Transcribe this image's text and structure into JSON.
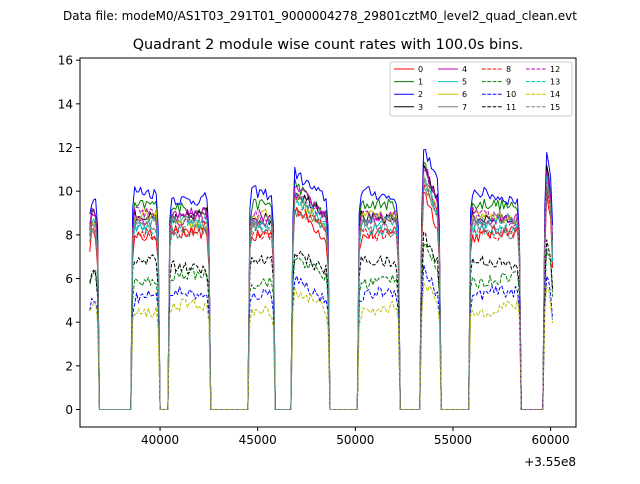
{
  "chart_data": {
    "type": "line",
    "suptitle": "Data file: modeM0/AS1T03_291T01_9000004278_29801cztM0_level2_quad_clean.evt",
    "title": "Quadrant 2 module wise count rates with 100.0s bins.",
    "xlabel": "",
    "ylabel": "",
    "x_offset_label": "+3.55e8",
    "xlim": [
      35900,
      61300
    ],
    "ylim": [
      -0.8,
      16.1
    ],
    "x_ticks": [
      40000,
      45000,
      50000,
      55000,
      60000
    ],
    "x_tick_labels": [
      "40000",
      "45000",
      "50000",
      "55000",
      "60000"
    ],
    "y_ticks": [
      0,
      2,
      4,
      6,
      8,
      10,
      12,
      14,
      16
    ],
    "y_tick_labels": [
      "0",
      "2",
      "4",
      "6",
      "8",
      "10",
      "12",
      "14",
      "16"
    ],
    "bin_seconds": 100,
    "x_start": 36400,
    "segments": [
      {
        "start": 36400,
        "end": 36800
      },
      {
        "start": 38600,
        "end": 39900
      },
      {
        "start": 40500,
        "end": 42500
      },
      {
        "start": 44600,
        "end": 45800
      },
      {
        "start": 46800,
        "end": 48600
      },
      {
        "start": 50200,
        "end": 52200
      },
      {
        "start": 53400,
        "end": 54300
      },
      {
        "start": 55900,
        "end": 58400
      },
      {
        "start": 59700,
        "end": 60100
      }
    ],
    "legend_location": "upper right",
    "series": [
      {
        "name": "0",
        "color": "#ff0000",
        "dashed": false,
        "level": 8.0
      },
      {
        "name": "1",
        "color": "#008000",
        "dashed": false,
        "level": 9.2
      },
      {
        "name": "2",
        "color": "#0000ff",
        "dashed": false,
        "level": 9.8
      },
      {
        "name": "3",
        "color": "#000000",
        "dashed": false,
        "level": 8.9
      },
      {
        "name": "4",
        "color": "#bf00bf",
        "dashed": false,
        "level": 8.8
      },
      {
        "name": "5",
        "color": "#00bfbf",
        "dashed": false,
        "level": 8.5
      },
      {
        "name": "6",
        "color": "#bfbf00",
        "dashed": false,
        "level": 8.7
      },
      {
        "name": "7",
        "color": "#7f7f7f",
        "dashed": false,
        "level": 8.3
      },
      {
        "name": "8",
        "color": "#ff0000",
        "dashed": true,
        "level": 8.2
      },
      {
        "name": "9",
        "color": "#008000",
        "dashed": true,
        "level": 6.0
      },
      {
        "name": "10",
        "color": "#0000ff",
        "dashed": true,
        "level": 5.2
      },
      {
        "name": "11",
        "color": "#000000",
        "dashed": true,
        "level": 6.6
      },
      {
        "name": "12",
        "color": "#bf00bf",
        "dashed": true,
        "level": 8.9
      },
      {
        "name": "13",
        "color": "#00bfbf",
        "dashed": true,
        "level": 8.4
      },
      {
        "name": "14",
        "color": "#bfbf00",
        "dashed": true,
        "level": 4.6
      },
      {
        "name": "15",
        "color": "#7f7f7f",
        "dashed": true,
        "level": 8.6
      }
    ]
  }
}
